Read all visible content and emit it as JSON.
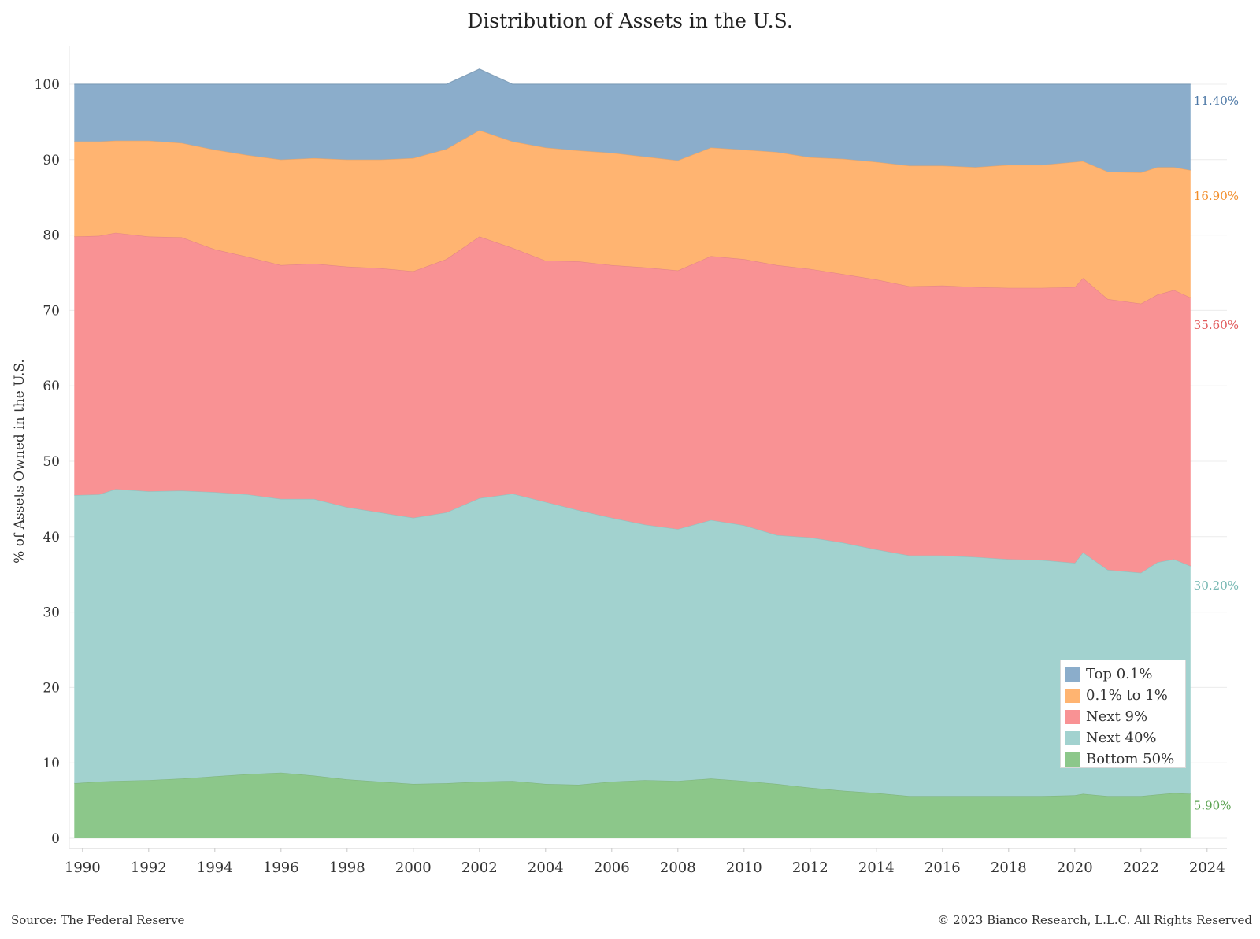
{
  "chart_data": {
    "type": "area",
    "stacked": true,
    "title": "Distribution of Assets in the U.S.",
    "ylabel": "% of Assets Owned in the U.S.",
    "xlabel": "",
    "xlim": [
      1989.6,
      2024.6
    ],
    "ylim": [
      0,
      100
    ],
    "x_ticks": [
      "1990",
      "1992",
      "1994",
      "1996",
      "1998",
      "2000",
      "2002",
      "2004",
      "2006",
      "2008",
      "2010",
      "2012",
      "2014",
      "2016",
      "2018",
      "2020",
      "2022",
      "2024"
    ],
    "y_ticks": [
      "0",
      "10",
      "20",
      "30",
      "40",
      "50",
      "60",
      "70",
      "80",
      "90",
      "100"
    ],
    "grid": true,
    "legend_position": "bottom-right",
    "x": [
      1989.75,
      1990.5,
      1991,
      1992,
      1993,
      1994,
      1995,
      1996,
      1997,
      1998,
      1999,
      2000,
      2001,
      2002,
      2003,
      2004,
      2005,
      2006,
      2007,
      2008,
      2009,
      2010,
      2011,
      2012,
      2013,
      2014,
      2015,
      2016,
      2017,
      2018,
      2019,
      2020,
      2020.25,
      2021,
      2022,
      2022.5,
      2023,
      2023.5
    ],
    "series": [
      {
        "name": "Bottom 50%",
        "color": "#8cc78a",
        "values": [
          7.3,
          7.5,
          7.6,
          7.7,
          7.9,
          8.2,
          8.5,
          8.7,
          8.3,
          7.8,
          7.5,
          7.2,
          7.3,
          7.5,
          7.6,
          7.2,
          7.1,
          7.5,
          7.7,
          7.6,
          7.9,
          7.6,
          7.2,
          6.7,
          6.3,
          6.0,
          5.6,
          5.6,
          5.6,
          5.6,
          5.6,
          5.7,
          5.9,
          5.6,
          5.6,
          5.8,
          6.0,
          5.9
        ]
      },
      {
        "name": "Next 40%",
        "color": "#a2d2cf",
        "values": [
          38.2,
          38.1,
          38.7,
          38.3,
          38.2,
          37.7,
          37.1,
          36.3,
          36.7,
          36.1,
          35.7,
          35.3,
          35.9,
          37.6,
          38.1,
          37.4,
          36.4,
          35.0,
          33.9,
          33.4,
          34.3,
          33.9,
          33.0,
          33.2,
          32.9,
          32.3,
          31.9,
          31.9,
          31.7,
          31.4,
          31.3,
          30.8,
          32.0,
          30.0,
          29.6,
          30.8,
          31.0,
          30.2
        ]
      },
      {
        "name": "Next 9%",
        "color": "#f99294",
        "values": [
          34.3,
          34.3,
          34.0,
          33.8,
          33.6,
          32.2,
          31.5,
          31.0,
          31.2,
          31.9,
          32.4,
          32.7,
          33.6,
          34.7,
          32.6,
          32.0,
          33.0,
          33.5,
          34.1,
          34.3,
          35.0,
          35.3,
          35.8,
          35.6,
          35.6,
          35.8,
          35.7,
          35.8,
          35.8,
          36.0,
          36.1,
          36.6,
          36.4,
          35.9,
          35.7,
          35.5,
          35.7,
          35.6
        ]
      },
      {
        "name": "0.1% to 1%",
        "color": "#ffb471",
        "values": [
          12.6,
          12.5,
          12.2,
          12.7,
          12.5,
          13.2,
          13.5,
          14.0,
          14.0,
          14.2,
          14.4,
          15.0,
          14.6,
          14.1,
          14.1,
          15.0,
          14.7,
          14.9,
          14.7,
          14.6,
          14.4,
          14.5,
          15.0,
          14.8,
          15.3,
          15.6,
          16.0,
          15.9,
          15.9,
          16.3,
          16.3,
          16.6,
          15.5,
          16.9,
          17.4,
          16.9,
          16.3,
          16.9
        ]
      },
      {
        "name": "Top 0.1%",
        "color": "#8badcb",
        "values": [
          7.6,
          7.6,
          7.5,
          7.5,
          7.8,
          8.7,
          9.4,
          10.0,
          9.8,
          10.0,
          10.0,
          9.8,
          8.6,
          8.1,
          7.6,
          8.4,
          8.8,
          9.1,
          9.6,
          10.1,
          8.4,
          8.7,
          9.0,
          9.7,
          9.9,
          10.3,
          10.8,
          10.8,
          11.0,
          10.7,
          10.7,
          10.3,
          10.2,
          11.6,
          11.7,
          11.0,
          11.0,
          11.4
        ]
      }
    ],
    "end_labels": [
      {
        "text": "11.40%",
        "color": "#4e79a7"
      },
      {
        "text": "16.90%",
        "color": "#f28e2b"
      },
      {
        "text": "35.60%",
        "color": "#e15759"
      },
      {
        "text": "30.20%",
        "color": "#76b7b2"
      },
      {
        "text": "5.90%",
        "color": "#59a14f"
      }
    ]
  },
  "legend": {
    "items": [
      {
        "label": "Top 0.1%",
        "color": "#8badcb"
      },
      {
        "label": "0.1% to 1%",
        "color": "#ffb471"
      },
      {
        "label": "Next 9%",
        "color": "#f99294"
      },
      {
        "label": "Next 40%",
        "color": "#a2d2cf"
      },
      {
        "label": "Bottom 50%",
        "color": "#8cc78a"
      }
    ]
  },
  "footer": {
    "source": "Source: The Federal Reserve",
    "copyright": "© 2023 Bianco Research, L.L.C. All Rights Reserved"
  }
}
